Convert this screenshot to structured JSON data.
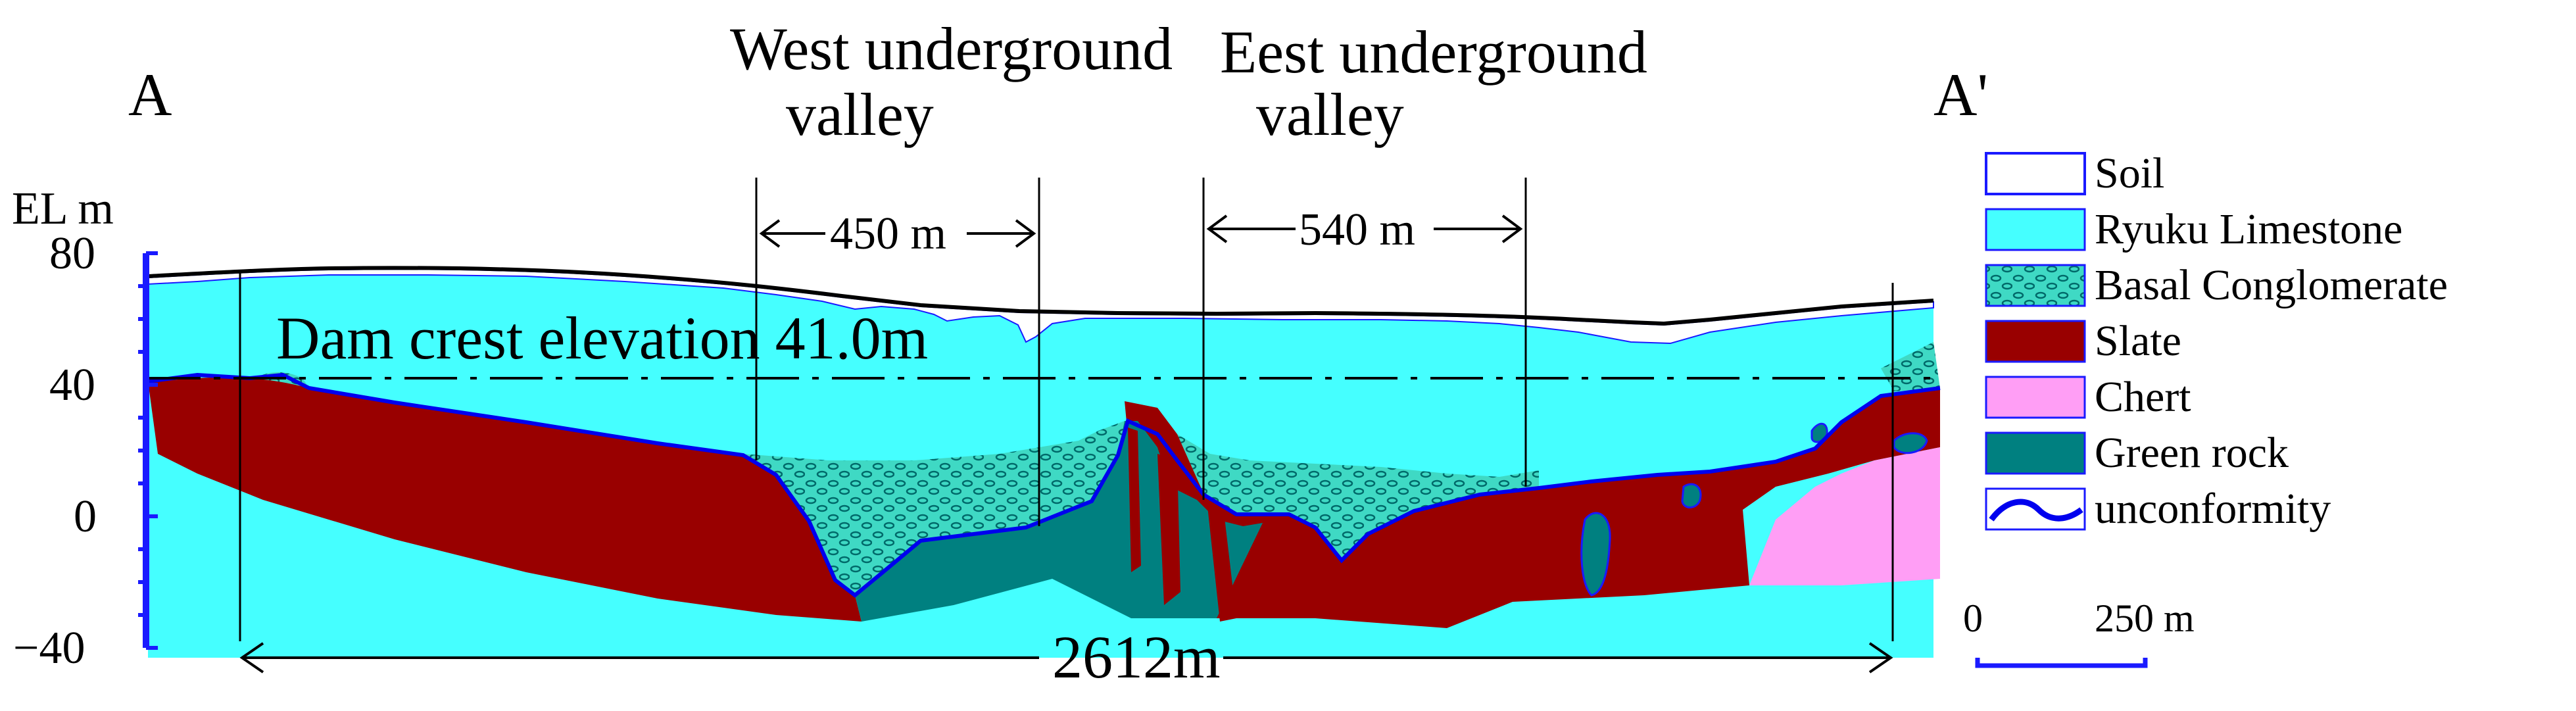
{
  "section": {
    "start_label": "A",
    "end_label": "A'",
    "total_length_label": "2612m",
    "dam_crest_label": "Dam crest elevation 41.0m"
  },
  "valleys": [
    {
      "name_line1": "West underground",
      "name_line2": "valley",
      "width_label": "450 m"
    },
    {
      "name_line1": "Eest underground",
      "name_line2": "valley",
      "width_label": "540 m"
    }
  ],
  "axis": {
    "unit_label": "EL m",
    "ticks": [
      "80",
      "40",
      "0",
      "−40"
    ],
    "color": "#1a1aff"
  },
  "legend": {
    "items": [
      {
        "label": "Soil",
        "color": "#ffffff",
        "icon": "soil-swatch-icon"
      },
      {
        "label": "Ryuku Limestone",
        "color": "#45ffff",
        "icon": "limestone-swatch-icon"
      },
      {
        "label": "Basal Conglomerate",
        "color": "#3fd9c4",
        "icon": "conglomerate-swatch-icon"
      },
      {
        "label": "Slate",
        "color": "#990000",
        "icon": "slate-swatch-icon"
      },
      {
        "label": "Chert",
        "color": "#ff9ef5",
        "icon": "chert-swatch-icon"
      },
      {
        "label": "Green rock",
        "color": "#008080",
        "icon": "green-rock-swatch-icon"
      },
      {
        "label": "unconformity",
        "color": "#0000ee",
        "icon": "unconformity-line-icon"
      }
    ]
  },
  "scale_bar": {
    "start_label": "0",
    "end_label": "250 m"
  }
}
